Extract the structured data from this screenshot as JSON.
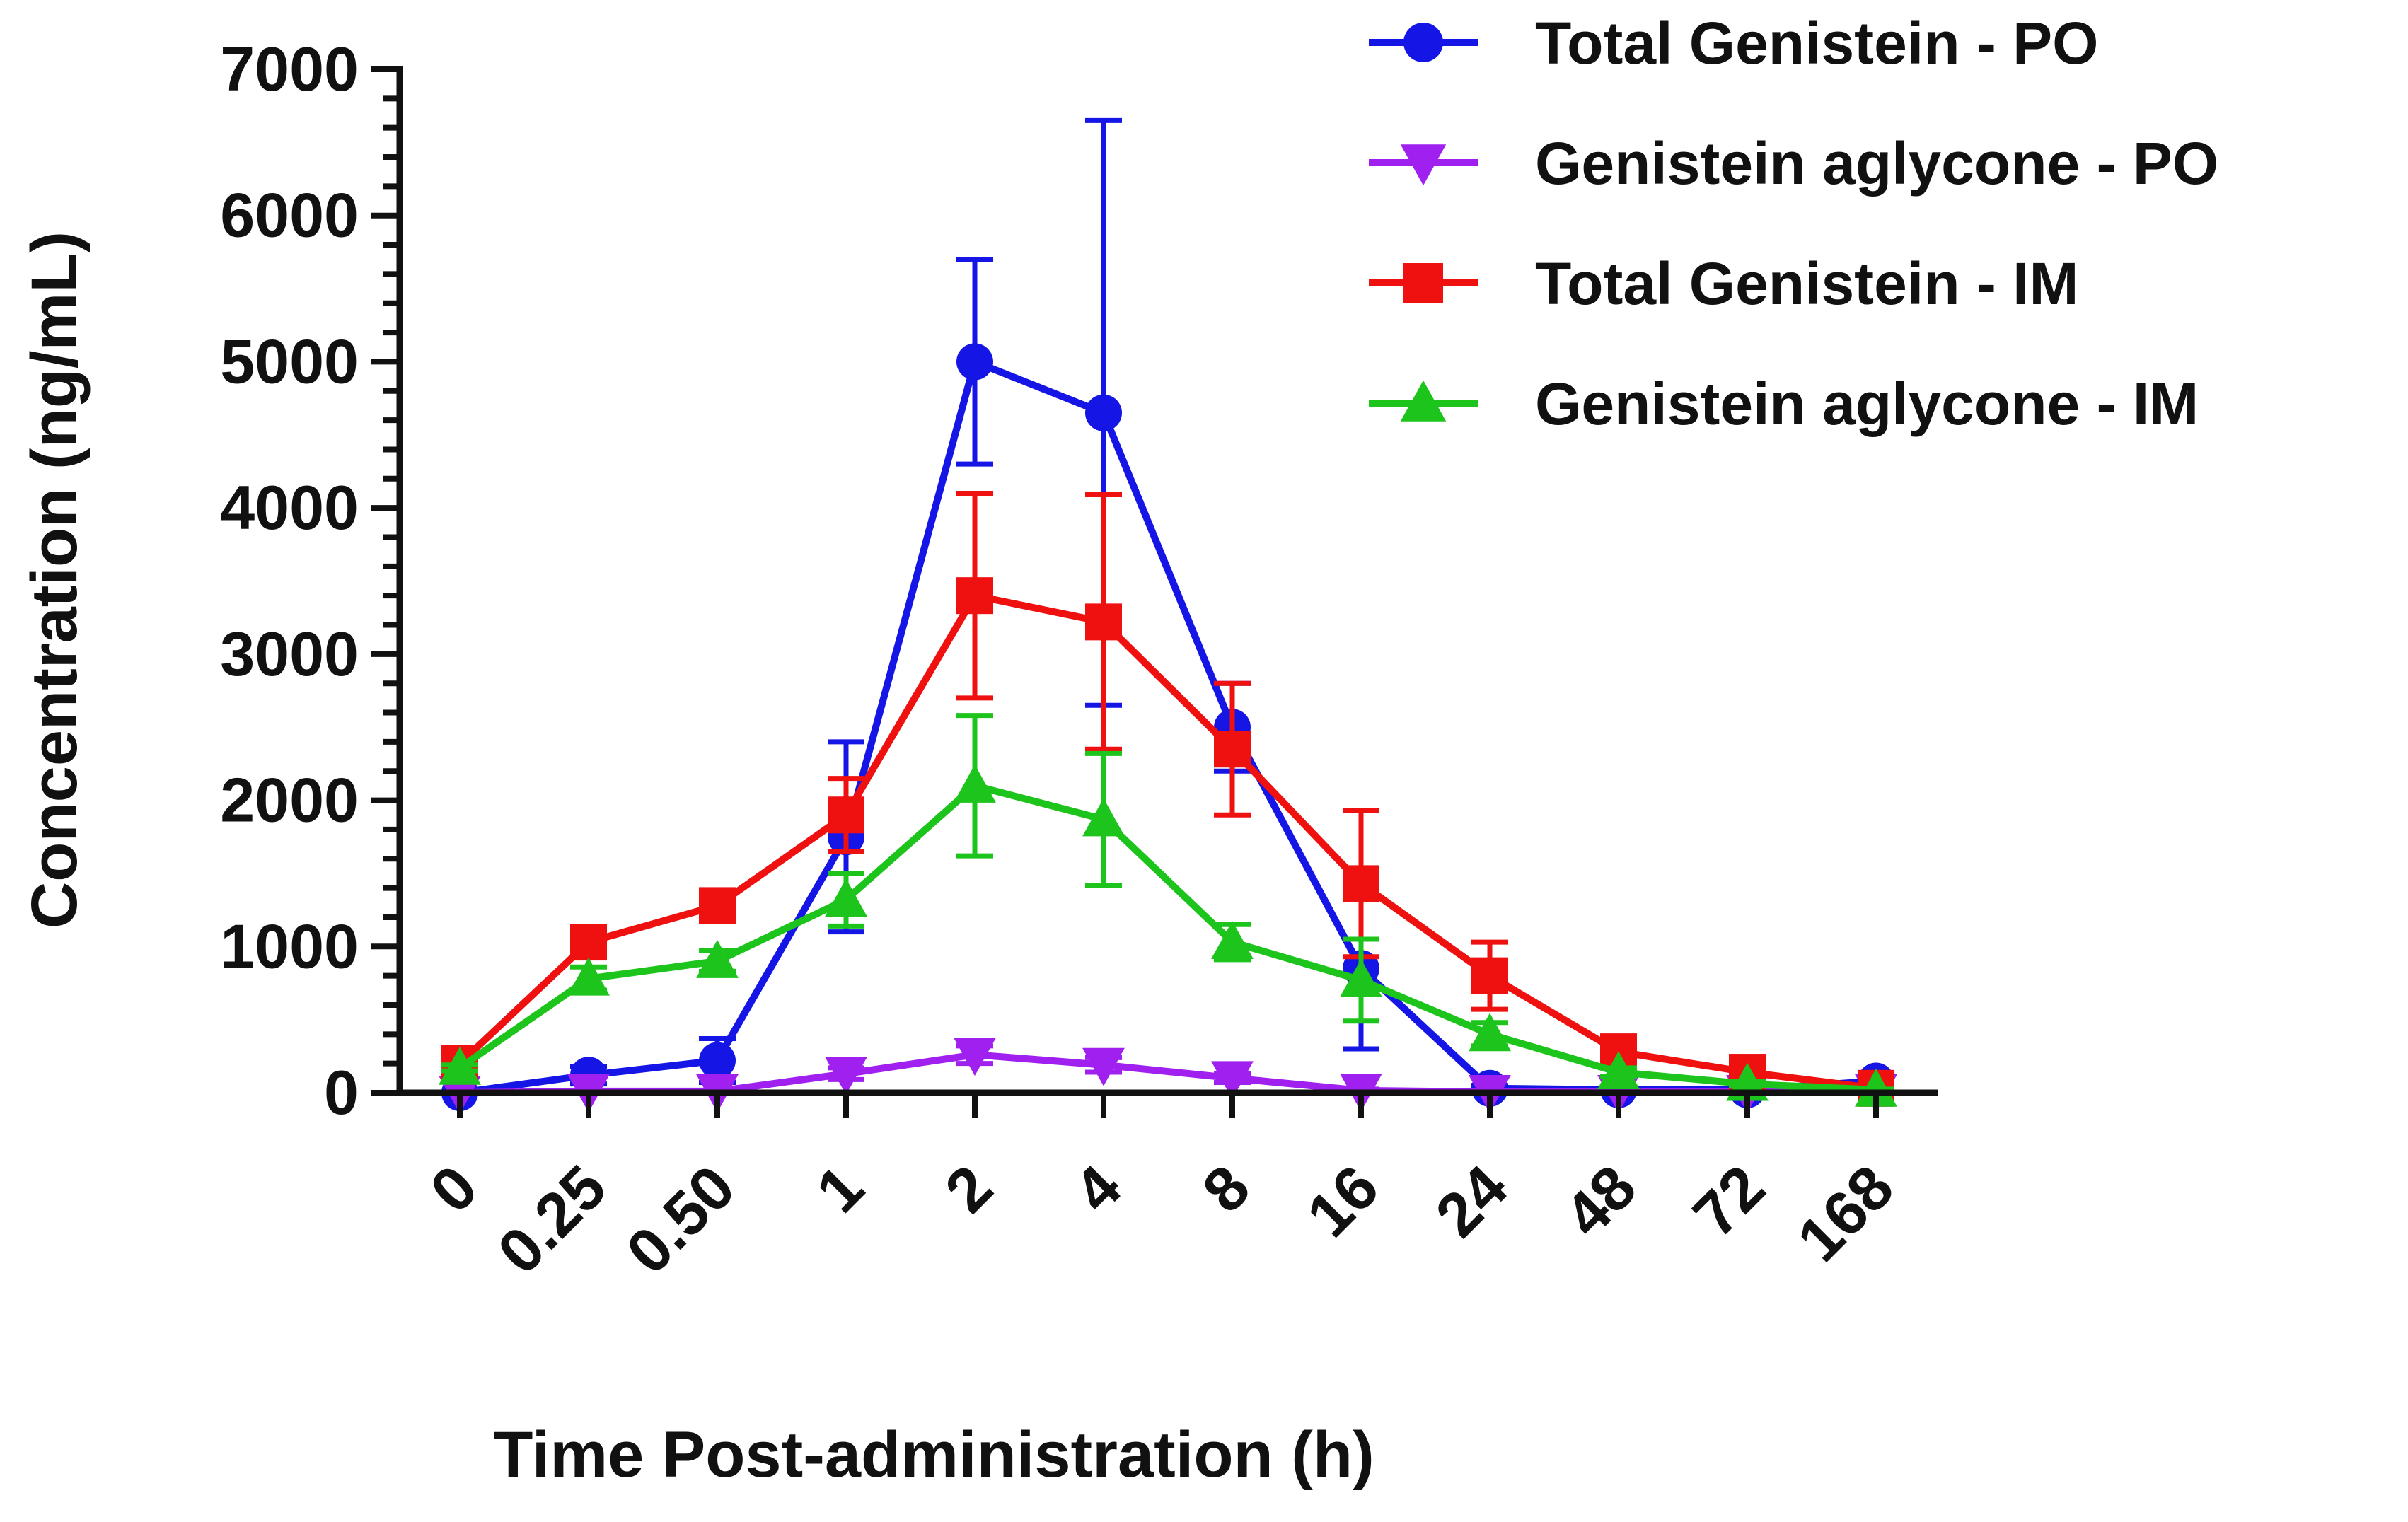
{
  "chart_data": {
    "type": "line",
    "categories": [
      "0",
      "0.25",
      "0.50",
      "1",
      "2",
      "4",
      "8",
      "16",
      "24",
      "48",
      "72",
      "168"
    ],
    "xlabel": "Time Post-administration (h)",
    "ylabel": "Concentration (ng/mL)",
    "ylim": [
      0,
      7000
    ],
    "yticks": [
      0,
      1000,
      2000,
      3000,
      4000,
      5000,
      6000,
      7000
    ],
    "grid": false,
    "legend_position": "top-right",
    "error_bars": "upper and lower",
    "series": [
      {
        "name": "Total Genistein - PO",
        "color": "#1515e6",
        "marker": "circle",
        "values": [
          0,
          120,
          220,
          1750,
          5000,
          4650,
          2500,
          850,
          30,
          20,
          20,
          80
        ],
        "errors": [
          0,
          60,
          150,
          650,
          700,
          2000,
          300,
          550,
          20,
          10,
          10,
          20
        ]
      },
      {
        "name": "Genistein aglycone - PO",
        "color": "#a020f0",
        "marker": "triangle-down",
        "values": [
          0,
          10,
          10,
          130,
          260,
          190,
          100,
          15,
          5,
          5,
          5,
          10
        ],
        "errors": [
          0,
          5,
          5,
          40,
          60,
          50,
          30,
          10,
          5,
          5,
          5,
          5
        ]
      },
      {
        "name": "Total Genistein - IM",
        "color": "#ef1010",
        "marker": "square",
        "values": [
          200,
          1030,
          1280,
          1900,
          3400,
          3220,
          2350,
          1430,
          800,
          280,
          140,
          30
        ],
        "errors": [
          30,
          60,
          70,
          250,
          700,
          870,
          450,
          500,
          230,
          40,
          20,
          10
        ]
      },
      {
        "name": "Genistein aglycone - IM",
        "color": "#1cc41c",
        "marker": "triangle-up",
        "values": [
          170,
          780,
          900,
          1320,
          2100,
          1870,
          1030,
          770,
          400,
          140,
          60,
          20
        ],
        "errors": [
          20,
          80,
          70,
          180,
          480,
          450,
          120,
          280,
          80,
          30,
          15,
          5
        ]
      }
    ]
  }
}
